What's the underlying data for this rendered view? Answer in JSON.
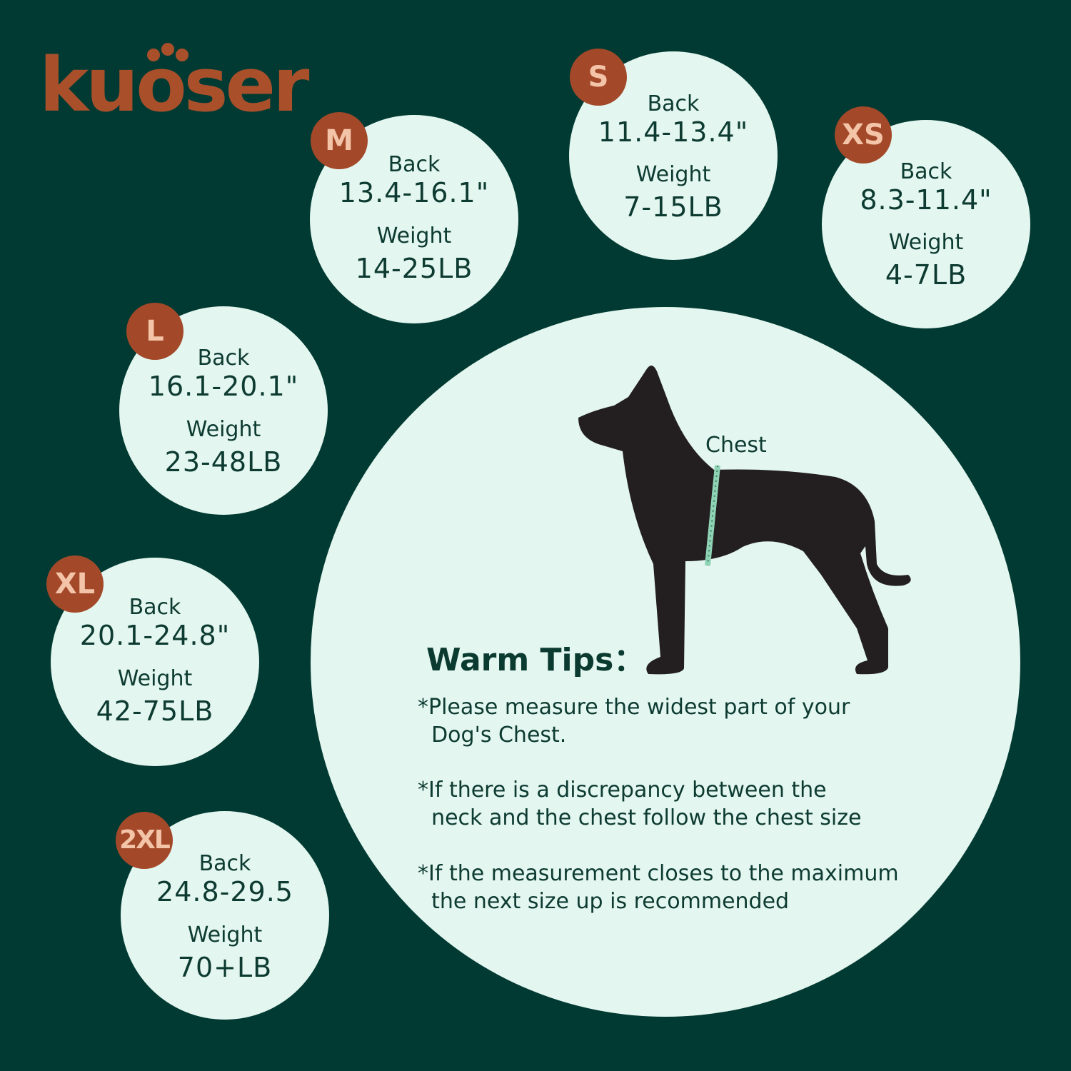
{
  "brand": {
    "name": "kuoser",
    "color": "#a9502b"
  },
  "colors": {
    "background": "#013a32",
    "circle": "#e3f6ef",
    "badge": "#a3492a",
    "text": "#0d3b31"
  },
  "sizes": [
    {
      "size": "M",
      "back_label": "Back",
      "back": "13.4-16.1\"",
      "weight_label": "Weight",
      "weight": "14-25LB"
    },
    {
      "size": "S",
      "back_label": "Back",
      "back": "11.4-13.4\"",
      "weight_label": "Weight",
      "weight": "7-15LB"
    },
    {
      "size": "XS",
      "back_label": "Back",
      "back": "8.3-11.4\"",
      "weight_label": "Weight",
      "weight": "4-7LB"
    },
    {
      "size": "L",
      "back_label": "Back",
      "back": "16.1-20.1\"",
      "weight_label": "Weight",
      "weight": "23-48LB"
    },
    {
      "size": "XL",
      "back_label": "Back",
      "back": "20.1-24.8\"",
      "weight_label": "Weight",
      "weight": "42-75LB"
    },
    {
      "size": "2XL",
      "back_label": "Back",
      "back": "24.8-29.5",
      "weight_label": "Weight",
      "weight": "70+LB"
    }
  ],
  "diagram": {
    "chest_label": "Chest",
    "icon": "dog-silhouette-icon"
  },
  "tips": {
    "title": "Warm Tips：",
    "items": [
      "*Please measure the widest part of your\n  Dog's Chest.",
      "*If there is a discrepancy between the\n  neck and the chest follow the chest size",
      "*If the measurement closes to the maximum\n  the next size up is recommended"
    ]
  }
}
